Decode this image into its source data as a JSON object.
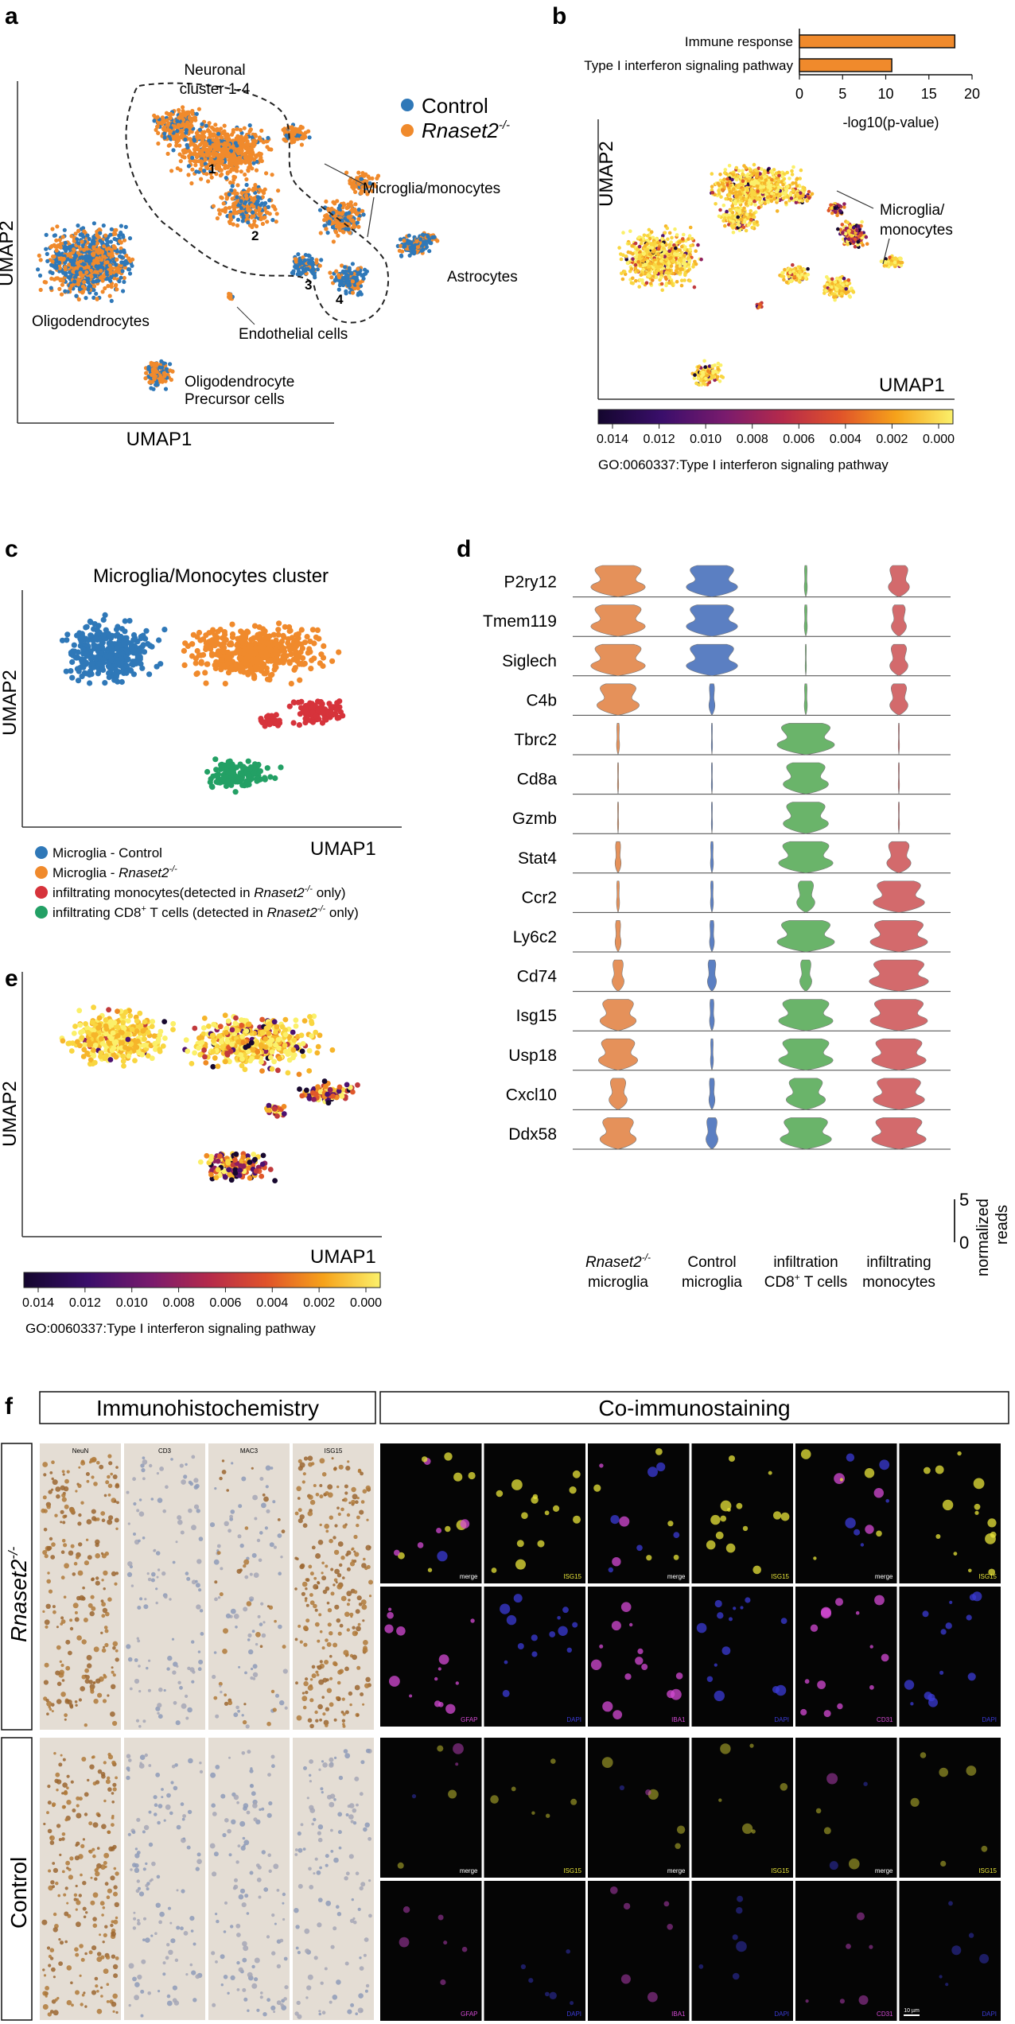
{
  "panels": {
    "a": {
      "letter": "a",
      "title_cluster": [
        "Neuronal",
        "cluster 1-4"
      ],
      "legend": [
        {
          "label": "Control",
          "color": "#2f78b8"
        },
        {
          "label": "Rnaset2",
          "sup": "-/-",
          "color": "#f08a2c"
        }
      ],
      "cluster_labels": {
        "microglia": "Microglia/monocytes",
        "astrocytes": "Astrocytes",
        "oligodendrocytes": "Oligodendrocytes",
        "endothelial": "Endothelial cells",
        "opc_line1": "Oligodendrocyte",
        "opc_line2": "Precursor cells"
      },
      "cluster_numbers": [
        "1",
        "2",
        "3",
        "4"
      ],
      "xlabel": "UMAP1",
      "ylabel": "UMAP2"
    },
    "b": {
      "letter": "b",
      "callout": [
        "Microglia/",
        "monocytes"
      ],
      "xlabel": "UMAP1",
      "ylabel": "UMAP2",
      "colorbar_ticks": [
        "0.014",
        "0.012",
        "0.010",
        "0.008",
        "0.006",
        "0.004",
        "0.002",
        "0.000"
      ],
      "colorbar_label": "GO:0060337:Type I interferon signaling pathway"
    },
    "c": {
      "letter": "c",
      "title": "Microglia/Monocytes cluster",
      "xlabel": "UMAP1",
      "ylabel": "UMAP2",
      "legend": [
        {
          "pre": "Microglia - Control",
          "color": "#2f78b8"
        },
        {
          "pre": "Microglia - ",
          "ital": "Rnaset2",
          "sup": "-/-",
          "color": "#f08a2c"
        },
        {
          "pre": "infiltrating monocytes(detected in ",
          "ital": "Rnaset2",
          "sup": "-/-",
          "post": " only)",
          "color": "#d6333b"
        },
        {
          "pre": "infiltrating CD8",
          "sup0": "+",
          "pre2": " T cells (detected in ",
          "ital": "Rnaset2",
          "sup": "-/-",
          "post": " only)",
          "color": "#23a065"
        }
      ]
    },
    "d": {
      "letter": "d",
      "genes": [
        "P2ry12",
        "Tmem119",
        "Siglech",
        "C4b",
        "Tbrc2",
        "Cd8a",
        "Gzmb",
        "Stat4",
        "Ccr2",
        "Ly6c2",
        "Cd74",
        "Isg15",
        "Usp18",
        "Cxcl10",
        "Ddx58"
      ],
      "groups": [
        {
          "line1": "Rnaset2",
          "sup": "-/-",
          "line2": "microglia",
          "color": "#e5915a"
        },
        {
          "line1": "Control",
          "line2": "microglia",
          "color": "#5b7fc2"
        },
        {
          "line1": "infiltration",
          "line2": "CD8",
          "sup2": "+",
          "line2b": " T cells",
          "color": "#6ab46a"
        },
        {
          "line1": "infiltrating",
          "line2": "monocytes",
          "color": "#d36a6c"
        }
      ],
      "scale_max": "5",
      "scale_min": "0",
      "scale_label": [
        "normalized",
        "reads"
      ]
    },
    "e": {
      "letter": "e",
      "xlabel": "UMAP1",
      "ylabel": "UMAP2",
      "colorbar_ticks": [
        "0.014",
        "0.012",
        "0.010",
        "0.008",
        "0.006",
        "0.004",
        "0.002",
        "0.000"
      ],
      "colorbar_label": "GO:0060337:Type I interferon signaling pathway"
    },
    "f": {
      "letter": "f",
      "ihc_title": "Immunohistochemistry",
      "co_title": "Co-immunostaining",
      "ihc_markers": [
        "NeuN",
        "CD3",
        "MAC3",
        "ISG15"
      ],
      "row_labels": {
        "ko": "Rnaset2",
        "ko_sup": "-/-",
        "ctrl": "Control"
      },
      "merge_label": "merge",
      "co_rows": [
        [
          "merge",
          "ISG15",
          "merge",
          "ISG15",
          "merge",
          "ISG15"
        ],
        [
          "GFAP",
          "DAPI",
          "IBA1",
          "DAPI",
          "CD31",
          "DAPI"
        ],
        [
          "merge",
          "ISG15",
          "merge",
          "ISG15",
          "merge",
          "ISG15"
        ],
        [
          "GFAP",
          "DAPI",
          "IBA1",
          "DAPI",
          "CD31",
          "DAPI"
        ]
      ],
      "scale_label": "10 µm"
    }
  },
  "chart_data": [
    {
      "type": "bar",
      "categories": [
        "Immune response",
        "Type I interferon signaling pathway"
      ],
      "values": [
        18,
        10.7
      ],
      "xlabel": "-log10(p-value)",
      "xlim": [
        0,
        20
      ],
      "xticks": [
        "0",
        "5",
        "10",
        "15",
        "20"
      ],
      "color": "#f08a2c"
    }
  ]
}
